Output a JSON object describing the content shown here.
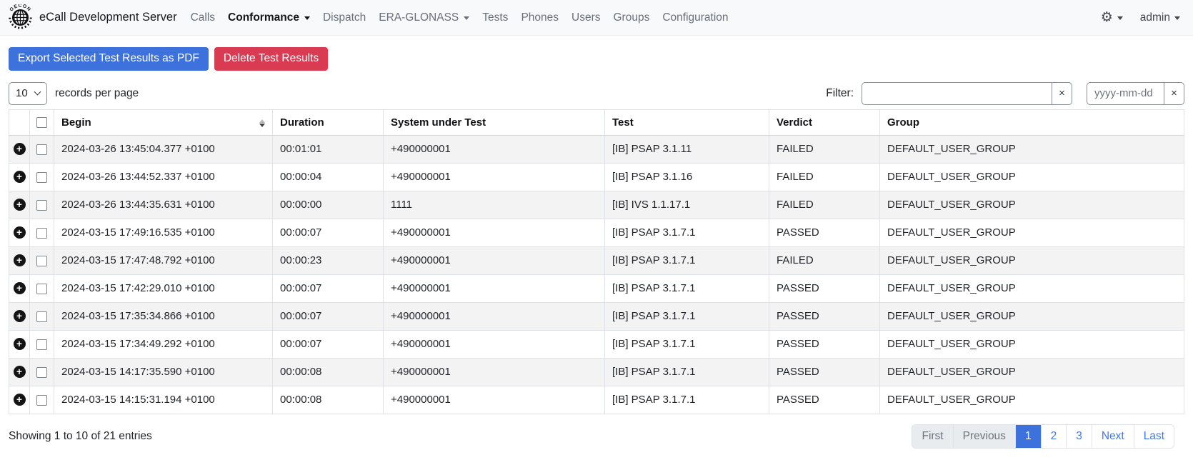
{
  "navbar": {
    "brand": "eCall Development Server",
    "items": [
      {
        "label": "Calls",
        "active": false,
        "caret": false
      },
      {
        "label": "Conformance",
        "active": true,
        "caret": true
      },
      {
        "label": "Dispatch",
        "active": false,
        "caret": false
      },
      {
        "label": "ERA-GLONASS",
        "active": false,
        "caret": true
      },
      {
        "label": "Tests",
        "active": false,
        "caret": false
      },
      {
        "label": "Phones",
        "active": false,
        "caret": false
      },
      {
        "label": "Users",
        "active": false,
        "caret": false
      },
      {
        "label": "Groups",
        "active": false,
        "caret": false
      },
      {
        "label": "Configuration",
        "active": false,
        "caret": false
      }
    ],
    "user": "admin",
    "gear_icon": "⚙"
  },
  "toolbar": {
    "export_label": "Export Selected Test Results as PDF",
    "delete_label": "Delete Test Results"
  },
  "controls": {
    "page_size": "10",
    "page_size_suffix": "records per page",
    "filter_label": "Filter:",
    "filter_value": "",
    "clear_label": "×",
    "date_placeholder": "yyyy-mm-dd"
  },
  "table": {
    "headers": [
      "Begin",
      "Duration",
      "System under Test",
      "Test",
      "Verdict",
      "Group"
    ],
    "rows": [
      {
        "begin": "2024-03-26 13:45:04.377 +0100",
        "duration": "00:01:01",
        "system": "+490000001",
        "test": "[IB] PSAP 3.1.11",
        "verdict": "FAILED",
        "group": "DEFAULT_USER_GROUP"
      },
      {
        "begin": "2024-03-26 13:44:52.337 +0100",
        "duration": "00:00:04",
        "system": "+490000001",
        "test": "[IB] PSAP 3.1.16",
        "verdict": "FAILED",
        "group": "DEFAULT_USER_GROUP"
      },
      {
        "begin": "2024-03-26 13:44:35.631 +0100",
        "duration": "00:00:00",
        "system": "1111",
        "test": "[IB] IVS 1.1.17.1",
        "verdict": "FAILED",
        "group": "DEFAULT_USER_GROUP"
      },
      {
        "begin": "2024-03-15 17:49:16.535 +0100",
        "duration": "00:00:07",
        "system": "+490000001",
        "test": "[IB] PSAP 3.1.7.1",
        "verdict": "PASSED",
        "group": "DEFAULT_USER_GROUP"
      },
      {
        "begin": "2024-03-15 17:47:48.792 +0100",
        "duration": "00:00:23",
        "system": "+490000001",
        "test": "[IB] PSAP 3.1.7.1",
        "verdict": "FAILED",
        "group": "DEFAULT_USER_GROUP"
      },
      {
        "begin": "2024-03-15 17:42:29.010 +0100",
        "duration": "00:00:07",
        "system": "+490000001",
        "test": "[IB] PSAP 3.1.7.1",
        "verdict": "PASSED",
        "group": "DEFAULT_USER_GROUP"
      },
      {
        "begin": "2024-03-15 17:35:34.866 +0100",
        "duration": "00:00:07",
        "system": "+490000001",
        "test": "[IB] PSAP 3.1.7.1",
        "verdict": "PASSED",
        "group": "DEFAULT_USER_GROUP"
      },
      {
        "begin": "2024-03-15 17:34:49.292 +0100",
        "duration": "00:00:07",
        "system": "+490000001",
        "test": "[IB] PSAP 3.1.7.1",
        "verdict": "PASSED",
        "group": "DEFAULT_USER_GROUP"
      },
      {
        "begin": "2024-03-15 14:17:35.590 +0100",
        "duration": "00:00:08",
        "system": "+490000001",
        "test": "[IB] PSAP 3.1.7.1",
        "verdict": "PASSED",
        "group": "DEFAULT_USER_GROUP"
      },
      {
        "begin": "2024-03-15 14:15:31.194 +0100",
        "duration": "00:00:08",
        "system": "+490000001",
        "test": "[IB] PSAP 3.1.7.1",
        "verdict": "PASSED",
        "group": "DEFAULT_USER_GROUP"
      }
    ]
  },
  "footer": {
    "summary": "Showing 1 to 10 of 21 entries",
    "pagination": [
      {
        "label": "First",
        "state": "disabled"
      },
      {
        "label": "Previous",
        "state": "disabled"
      },
      {
        "label": "1",
        "state": "active"
      },
      {
        "label": "2",
        "state": "link"
      },
      {
        "label": "3",
        "state": "link"
      },
      {
        "label": "Next",
        "state": "link"
      },
      {
        "label": "Last",
        "state": "link"
      }
    ]
  },
  "colors": {
    "primary": "#3d72dd",
    "danger": "#d93b52",
    "link": "#4377e4",
    "stripe": "#f3f3f4",
    "navbar_bg": "#f8f9fa"
  }
}
